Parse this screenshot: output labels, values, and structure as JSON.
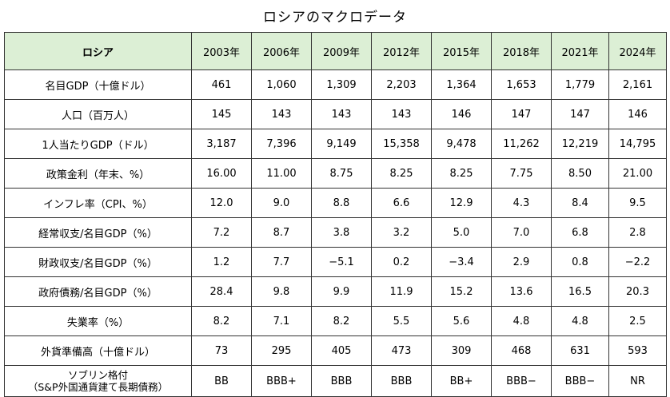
{
  "title": "ロシアのマクロデータ",
  "chart_data": {
    "type": "table",
    "title": "ロシアのマクロデータ",
    "corner": "ロシア",
    "columns": [
      "2003年",
      "2006年",
      "2009年",
      "2012年",
      "2015年",
      "2018年",
      "2021年",
      "2024年"
    ],
    "rows": [
      {
        "label": "名目GDP（十億ドル）",
        "values": [
          "461",
          "1,060",
          "1,309",
          "2,203",
          "1,364",
          "1,653",
          "1,779",
          "2,161"
        ]
      },
      {
        "label": "人口（百万人）",
        "values": [
          "145",
          "143",
          "143",
          "143",
          "146",
          "147",
          "147",
          "146"
        ]
      },
      {
        "label": "1人当たりGDP（ドル）",
        "values": [
          "3,187",
          "7,396",
          "9,149",
          "15,358",
          "9,478",
          "11,262",
          "12,219",
          "14,795"
        ]
      },
      {
        "label": "政策金利（年末、%）",
        "values": [
          "16.00",
          "11.00",
          "8.75",
          "8.25",
          "8.25",
          "7.75",
          "8.50",
          "21.00"
        ]
      },
      {
        "label": "インフレ率（CPI、%）",
        "values": [
          "12.0",
          "9.0",
          "8.8",
          "6.6",
          "12.9",
          "4.3",
          "8.4",
          "9.5"
        ]
      },
      {
        "label": "経常収支/名目GDP（%）",
        "values": [
          "7.2",
          "8.7",
          "3.8",
          "3.2",
          "5.0",
          "7.0",
          "6.8",
          "2.8"
        ]
      },
      {
        "label": "財政収支/名目GDP（%）",
        "values": [
          "1.2",
          "7.7",
          "−5.1",
          "0.2",
          "−3.4",
          "2.9",
          "0.8",
          "−2.2"
        ]
      },
      {
        "label": "政府債務/名目GDP（%）",
        "values": [
          "28.4",
          "9.8",
          "9.9",
          "11.9",
          "15.2",
          "13.6",
          "16.5",
          "20.3"
        ]
      },
      {
        "label": "失業率（%）",
        "values": [
          "8.2",
          "7.1",
          "8.2",
          "5.5",
          "5.6",
          "4.8",
          "4.8",
          "2.5"
        ]
      },
      {
        "label": "外貨準備高（十億ドル）",
        "values": [
          "73",
          "295",
          "405",
          "473",
          "309",
          "468",
          "631",
          "593"
        ]
      }
    ],
    "last_row": {
      "label_line1": "ソブリン格付",
      "label_line2": "（S&P外国通貨建て長期債務）",
      "values": [
        "BB",
        "BBB+",
        "BBB",
        "BBB",
        "BB+",
        "BBB−",
        "BBB−",
        "NR"
      ]
    }
  }
}
